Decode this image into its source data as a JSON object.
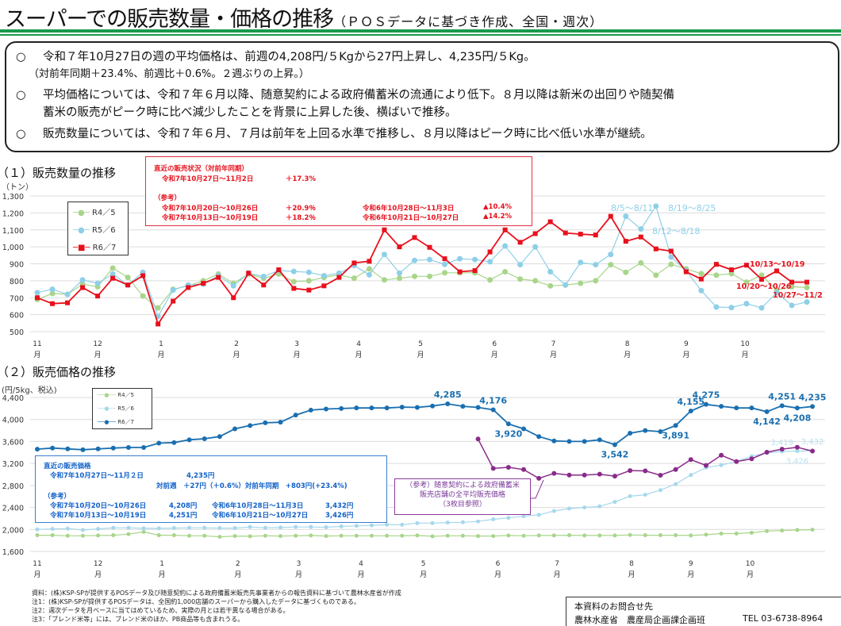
{
  "header": {
    "title": "スーパーでの販売数量・価格の推移",
    "subtitle": "（ＰＯＳデータに基づき作成、全国・週次）"
  },
  "summary": {
    "bullet_mark": "○",
    "lines": [
      "令和７年10月27日の週の平均価格は、前週の4,208円/５Kgから27円上昇し、4,235円/５Kg。",
      "（対前年同期＋23.4%、前週比＋0.6%。２週ぶりの上昇。）",
      "平均価格については、令和７年６月以降、随意契約による政府備蓄米の流通により低下。８月以降は新米の出回りや随契備",
      "蓄米の販売がピーク時に比べ減少したことを背景に上昇した後、横ばいで推移。",
      "販売数量については、令和７年６月、７月は前年を上回る水準で推移し、８月以降はピーク時に比べ低い水準が継続。"
    ]
  },
  "sales_box": {
    "heading": "直近の販売状況（対前年同期）",
    "latest_period": "令和7年10月27日〜11月2日",
    "latest_value": "＋17.3%",
    "ref_label": "（参考）",
    "rows": [
      {
        "period": "令和7年10月20日〜10月26日",
        "value": "＋20.9％",
        "prev_period": "令和6年10月28日〜11月3日",
        "prev_value": "▲10.4%"
      },
      {
        "period": "令和7年10月13日〜10月19日",
        "value": "＋18.2％",
        "prev_period": "令和6年10月21日〜10月27日",
        "prev_value": "▲14.2%"
      }
    ]
  },
  "price_box": {
    "heading": "直近の販売価格",
    "latest_period": "令和7年10月27日〜11月２日",
    "latest_value": "4,235円",
    "change": "対前週　＋27円（＋0.6%）対前年同期　+803円(+23.4%)",
    "ref_label": "（参考）",
    "rows": [
      {
        "period": "令和7年10月20日〜10月26日",
        "value": "4,208円",
        "prev_period": "令和6年10月28日〜11月3日",
        "prev_value": "3,432円"
      },
      {
        "period": "令和7年10月13日〜10月19日",
        "value": "4,251円",
        "prev_period": "令和6年10月21日〜10月27日",
        "prev_value": "3,426円"
      }
    ]
  },
  "reference_box": {
    "lines": [
      "（参考）随意契約による政府備蓄米",
      "販売店舗の全平均販売価格",
      "（3枚目参照）"
    ]
  },
  "chart_data": [
    {
      "type": "line",
      "title": "（１）販売数量の推移",
      "ylabel": "（トン）",
      "ylim": [
        500,
        1300
      ],
      "yticks": [
        500,
        600,
        700,
        800,
        900,
        1000,
        1100,
        1200,
        1300
      ],
      "ytick_labels": [
        "500",
        "600",
        "700",
        "800",
        "900",
        "1,000",
        "1,100",
        "1,200",
        "1,300"
      ],
      "grid": true,
      "legend": "top-left",
      "month_unit": "月",
      "month_ticks": [
        {
          "label": "11",
          "week": 0
        },
        {
          "label": "12",
          "week": 4
        },
        {
          "label": "1",
          "week": 8.2
        },
        {
          "label": "2",
          "week": 13.2
        },
        {
          "label": "3",
          "week": 17.2
        },
        {
          "label": "4",
          "week": 21.3
        },
        {
          "label": "5",
          "week": 25.4
        },
        {
          "label": "6",
          "week": 30.3
        },
        {
          "label": "7",
          "week": 34.2
        },
        {
          "label": "8",
          "week": 39.1
        },
        {
          "label": "9",
          "week": 43
        },
        {
          "label": "10",
          "week": 46.9
        }
      ],
      "series": [
        {
          "name": "R4／5",
          "color": "#a8d58a",
          "marker": "circle",
          "values": [
            690,
            725,
            720,
            780,
            765,
            875,
            820,
            710,
            640,
            750,
            770,
            800,
            840,
            785,
            840,
            815,
            840,
            795,
            800,
            820,
            835,
            815,
            870,
            805,
            815,
            826,
            826,
            847,
            847,
            847,
            805,
            853,
            810,
            800,
            770,
            775,
            785,
            800,
            895,
            850,
            905,
            833,
            897,
            870,
            842,
            833,
            842,
            792,
            833,
            745,
            765,
            760
          ]
        },
        {
          "name": "R5／6",
          "color": "#8ecfe8",
          "marker": "circle",
          "values": [
            730,
            750,
            720,
            805,
            785,
            840,
            775,
            850,
            590,
            745,
            775,
            780,
            830,
            770,
            845,
            825,
            860,
            855,
            850,
            830,
            845,
            890,
            835,
            955,
            845,
            920,
            925,
            897,
            930,
            925,
            912,
            1005,
            895,
            1000,
            853,
            775,
            908,
            895,
            955,
            1180,
            1105,
            1240,
            940,
            860,
            742,
            645,
            642,
            665,
            640,
            730,
            655,
            675
          ]
        },
        {
          "name": "R6／7",
          "color": "#e8101c",
          "marker": "square",
          "values": [
            700,
            665,
            670,
            760,
            710,
            815,
            775,
            830,
            545,
            680,
            760,
            785,
            820,
            700,
            845,
            775,
            865,
            755,
            745,
            770,
            820,
            905,
            915,
            1100,
            1000,
            1055,
            997,
            930,
            853,
            860,
            970,
            1100,
            1027,
            1078,
            1148,
            1082,
            1075,
            1070,
            1180,
            1033,
            1058,
            988,
            975,
            853,
            810,
            897,
            865,
            892,
            808,
            858,
            792,
            792
          ]
        }
      ],
      "annotations": [
        {
          "text": "8/5〜8/11",
          "color": "#8ecfe8"
        },
        {
          "text": "8/19〜8/25",
          "color": "#8ecfe8"
        },
        {
          "text": "8/12〜8/18",
          "color": "#8ecfe8"
        },
        {
          "text": "10/13〜10/19",
          "color": "#e8101c"
        },
        {
          "text": "10/20〜10/26",
          "color": "#e8101c"
        },
        {
          "text": "10/27〜11/2",
          "color": "#e8101c"
        }
      ]
    },
    {
      "type": "line",
      "title": "（２）販売価格の推移",
      "ylabel": "(円/5kg、税込)",
      "ylim": [
        1600,
        4400
      ],
      "yticks": [
        1600,
        2000,
        2400,
        2800,
        3200,
        3600,
        4000,
        4400
      ],
      "ytick_labels": [
        "1,600",
        "2,000",
        "2,400",
        "2,800",
        "3,200",
        "3,600",
        "4,000",
        "4,400"
      ],
      "grid": true,
      "legend": "top-left",
      "month_unit": "月",
      "month_ticks": [
        {
          "label": "11",
          "week": 0
        },
        {
          "label": "12",
          "week": 4
        },
        {
          "label": "1",
          "week": 8.2
        },
        {
          "label": "2",
          "week": 13.2
        },
        {
          "label": "3",
          "week": 17.2
        },
        {
          "label": "4",
          "week": 21.3
        },
        {
          "label": "5",
          "week": 25.4
        },
        {
          "label": "6",
          "week": 30.3
        },
        {
          "label": "7",
          "week": 34.2
        },
        {
          "label": "8",
          "week": 39.1
        },
        {
          "label": "9",
          "week": 43
        },
        {
          "label": "10",
          "week": 46.9
        }
      ],
      "series": [
        {
          "name": "R4／5",
          "color": "#a8d58a",
          "values": [
            1895,
            1895,
            1885,
            1885,
            1890,
            1895,
            1915,
            1955,
            1895,
            1895,
            1885,
            1885,
            1865,
            1880,
            1875,
            1885,
            1880,
            1885,
            1890,
            1880,
            1885,
            1885,
            1885,
            1885,
            1885,
            1890,
            1875,
            1885,
            1885,
            1880,
            1880,
            1890,
            1885,
            1890,
            1890,
            1895,
            1890,
            1890,
            1890,
            1900,
            1895,
            1895,
            1895,
            1890,
            1905,
            1925,
            1925,
            1940,
            1970,
            1980,
            1990,
            1995
          ]
        },
        {
          "name": "R5／6",
          "color": "#a6d8ec",
          "values": [
            2000,
            2010,
            2015,
            1990,
            2010,
            2030,
            2030,
            2020,
            2020,
            2025,
            2030,
            2030,
            2025,
            2025,
            2045,
            2030,
            2035,
            2045,
            2045,
            2040,
            2055,
            2065,
            2075,
            2085,
            2085,
            2115,
            2115,
            2125,
            2130,
            2145,
            2185,
            2210,
            2240,
            2265,
            2335,
            2380,
            2400,
            2420,
            2500,
            2605,
            2630,
            2715,
            2825,
            2990,
            3125,
            3170,
            3235,
            3330,
            3390,
            3419,
            3426,
            3432
          ]
        },
        {
          "name": "R6／7",
          "color": "#1a6fb0",
          "values": [
            3460,
            3480,
            3465,
            3450,
            3465,
            3480,
            3490,
            3490,
            3570,
            3580,
            3630,
            3650,
            3690,
            3830,
            3890,
            3940,
            3950,
            4080,
            4170,
            4190,
            4200,
            4210,
            4210,
            4210,
            4225,
            4220,
            4245,
            4285,
            4240,
            4220,
            4176,
            3920,
            3830,
            3690,
            3610,
            3600,
            3600,
            3630,
            3542,
            3750,
            3800,
            3780,
            3891,
            4155,
            4275,
            4240,
            4210,
            4210,
            4142,
            4251,
            4208,
            4235
          ]
        },
        {
          "color": "#8a2a8a",
          "values": [
            null,
            null,
            null,
            null,
            null,
            null,
            null,
            null,
            null,
            null,
            null,
            null,
            null,
            null,
            null,
            null,
            null,
            null,
            null,
            null,
            null,
            null,
            null,
            null,
            null,
            null,
            null,
            null,
            null,
            3645,
            3110,
            3130,
            3090,
            2930,
            3020,
            2990,
            2990,
            3005,
            2970,
            3070,
            3065,
            2985,
            3090,
            3270,
            3165,
            3350,
            3235,
            3285,
            3405,
            3460,
            3495,
            3425
          ]
        }
      ],
      "data_labels": [
        {
          "series": 2,
          "week": 27,
          "text": "4,285"
        },
        {
          "series": 2,
          "week": 30,
          "text": "4,176"
        },
        {
          "series": 2,
          "week": 31,
          "text": "3,920"
        },
        {
          "series": 2,
          "week": 38,
          "text": "3,542"
        },
        {
          "series": 2,
          "week": 42,
          "text": "3,891"
        },
        {
          "series": 2,
          "week": 43,
          "text": "4,155"
        },
        {
          "series": 2,
          "week": 44,
          "text": "4,275"
        },
        {
          "series": 2,
          "week": 48,
          "text": "4,142"
        },
        {
          "series": 2,
          "week": 49,
          "text": "4,251"
        },
        {
          "series": 2,
          "week": 50,
          "text": "4,208"
        },
        {
          "series": 2,
          "week": 51,
          "text": "4,235"
        },
        {
          "series": 1,
          "week": 49,
          "text": "3,419"
        },
        {
          "series": 1,
          "week": 50,
          "text": "3,426"
        },
        {
          "series": 1,
          "week": 51,
          "text": "3,432"
        }
      ]
    }
  ],
  "footer": {
    "notes": [
      "資料：(株)KSP-SPが提供するPOSデータ及び随意契約による政府備蓄米販売先事業者からの報告資料に基づいて農林水産省が作成",
      "注1：(株)KSP-SPが提供するPOSデータは、全国約1,000店舗のスーパーから購入したデータに基づくものである。",
      "注2：週次データを月ベースに当てはめているため、実際の月とは若干異なる場合がある。",
      "注3：「ブレンド米等」には、ブレンド米のほか、PB商品等も含まれうる。"
    ],
    "contact_title": "本資料のお問合せ先",
    "contact_org": "農林水産省　農産局企画課企画班",
    "contact_tel": "TEL 03-6738-8964"
  }
}
